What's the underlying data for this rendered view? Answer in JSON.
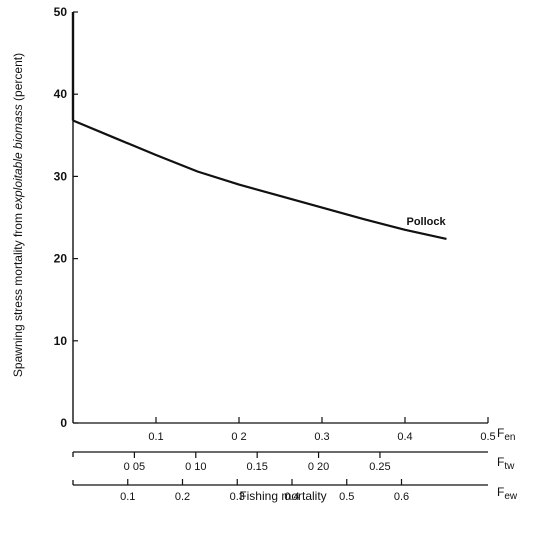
{
  "chart_data": {
    "type": "line",
    "title": "",
    "ylabel_parts": [
      "Spawning stress mortality from ",
      "exploitable biomass",
      " (percent)"
    ],
    "xlabel": "Fishing mortality",
    "ylim": [
      0,
      50
    ],
    "yticks": [
      0,
      10,
      20,
      30,
      40,
      50
    ],
    "series": [
      {
        "name": "Pollock",
        "x": [
          0.0,
          0.05,
          0.1,
          0.15,
          0.2,
          0.25,
          0.3,
          0.35,
          0.4,
          0.45
        ],
        "y": [
          36.8,
          34.7,
          32.6,
          30.6,
          29.0,
          27.6,
          26.2,
          24.8,
          23.5,
          22.4
        ]
      }
    ],
    "vertical_segment": {
      "x": 0,
      "y_from": 36.8,
      "y_to": 50
    },
    "x_axes": [
      {
        "name": "Fen",
        "name_base": "F",
        "name_sub": "en",
        "range": [
          0,
          0.5
        ],
        "ticks": [
          0.1,
          0.2,
          0.3,
          0.4,
          0.5
        ],
        "labels": [
          "0.1",
          "0 2",
          "0.3",
          "0.4",
          "0.5"
        ]
      },
      {
        "name": "Ftw",
        "name_base": "F",
        "name_sub": "tw",
        "range": [
          0,
          0.338
        ],
        "ticks": [
          0.05,
          0.1,
          0.15,
          0.2,
          0.25
        ],
        "labels": [
          "0 05",
          "0 10",
          "0.15",
          "0 20",
          "0.25"
        ]
      },
      {
        "name": "Few",
        "name_base": "F",
        "name_sub": "ew",
        "range": [
          0,
          0.758
        ],
        "ticks": [
          0.1,
          0.2,
          0.3,
          0.4,
          0.5,
          0.6
        ],
        "labels": [
          "0.1",
          "0.2",
          "0.3",
          "0.4",
          "0.5",
          "0.6"
        ]
      }
    ]
  }
}
